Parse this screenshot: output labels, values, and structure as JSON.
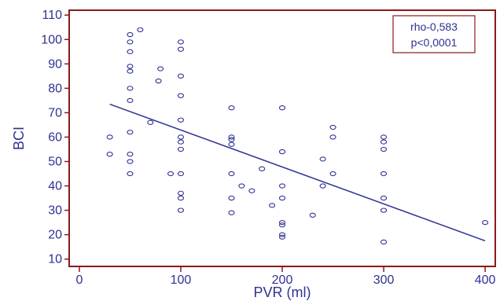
{
  "chart_data": {
    "type": "scatter",
    "xlabel": "PVR (ml)",
    "ylabel": "BCI",
    "xlim": [
      -10,
      410
    ],
    "ylim": [
      7,
      112
    ],
    "xticks": [
      0,
      100,
      200,
      300,
      400
    ],
    "yticks": [
      10,
      20,
      30,
      40,
      50,
      60,
      70,
      80,
      90,
      100,
      110
    ],
    "grid": false,
    "colors": {
      "frame": "#8b1a1a",
      "marker": "#2e3192",
      "line": "#2e3192",
      "text": "#2e3192"
    },
    "annotation": {
      "lines": [
        "rho-0,583",
        "p<0,0001"
      ],
      "placement": "top-right"
    },
    "regression_line": {
      "x": [
        30,
        400
      ],
      "y": [
        73.5,
        17.5
      ]
    },
    "points": [
      [
        30,
        60
      ],
      [
        30,
        53
      ],
      [
        50,
        102
      ],
      [
        50,
        99
      ],
      [
        50,
        95
      ],
      [
        50,
        89
      ],
      [
        50,
        87
      ],
      [
        50,
        80
      ],
      [
        50,
        75
      ],
      [
        50,
        62
      ],
      [
        50,
        53
      ],
      [
        50,
        50
      ],
      [
        50,
        45
      ],
      [
        60,
        104
      ],
      [
        70,
        66
      ],
      [
        78,
        83
      ],
      [
        80,
        88
      ],
      [
        90,
        45
      ],
      [
        100,
        99
      ],
      [
        100,
        96
      ],
      [
        100,
        85
      ],
      [
        100,
        77
      ],
      [
        100,
        67
      ],
      [
        100,
        60
      ],
      [
        100,
        58
      ],
      [
        100,
        55
      ],
      [
        100,
        45
      ],
      [
        100,
        37
      ],
      [
        100,
        35
      ],
      [
        100,
        30
      ],
      [
        150,
        72
      ],
      [
        150,
        60
      ],
      [
        150,
        59
      ],
      [
        150,
        57
      ],
      [
        150,
        45
      ],
      [
        150,
        35
      ],
      [
        150,
        29
      ],
      [
        160,
        40
      ],
      [
        170,
        38
      ],
      [
        180,
        47
      ],
      [
        190,
        32
      ],
      [
        200,
        72
      ],
      [
        200,
        54
      ],
      [
        200,
        40
      ],
      [
        200,
        35
      ],
      [
        200,
        25
      ],
      [
        200,
        24
      ],
      [
        200,
        20
      ],
      [
        200,
        19
      ],
      [
        230,
        28
      ],
      [
        240,
        51
      ],
      [
        240,
        40
      ],
      [
        250,
        64
      ],
      [
        250,
        60
      ],
      [
        250,
        45
      ],
      [
        300,
        60
      ],
      [
        300,
        58
      ],
      [
        300,
        55
      ],
      [
        300,
        45
      ],
      [
        300,
        35
      ],
      [
        300,
        30
      ],
      [
        300,
        17
      ],
      [
        400,
        25
      ]
    ]
  }
}
